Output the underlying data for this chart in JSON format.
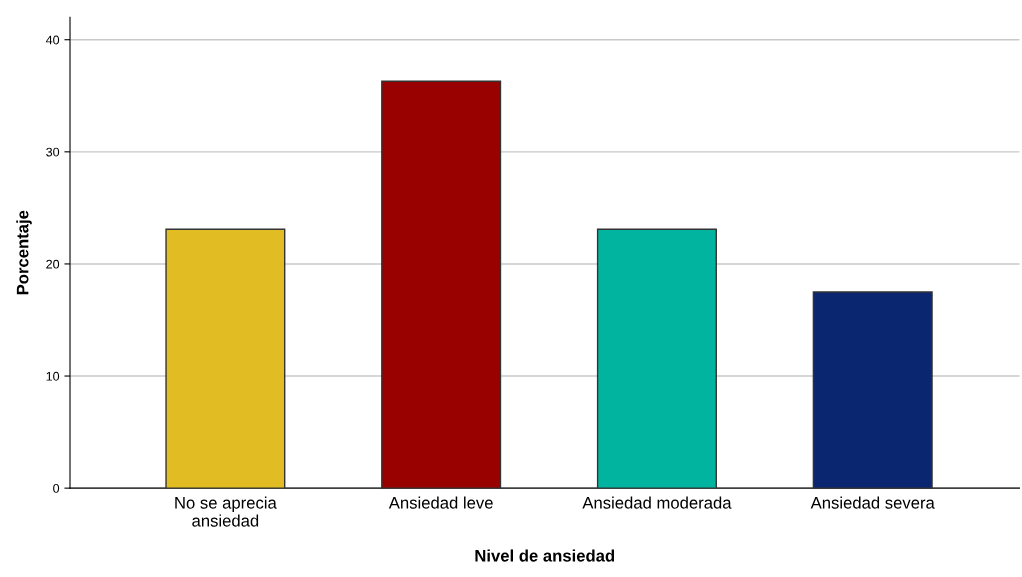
{
  "chart_data": {
    "type": "bar",
    "xlabel": "Nivel de ansiedad",
    "ylabel": "Porcentaje",
    "categories": [
      "No se aprecia\nansiedad",
      "Ansiedad leve",
      "Ansiedad moderada",
      "Ansiedad severa"
    ],
    "values": [
      23.1,
      36.3,
      23.1,
      17.5
    ],
    "colors": [
      "#e1bc22",
      "#990000",
      "#00b4a0",
      "#0b2670"
    ],
    "ylim": [
      0,
      42
    ],
    "yticks": [
      0,
      10,
      20,
      30,
      40
    ],
    "grid": "y"
  }
}
